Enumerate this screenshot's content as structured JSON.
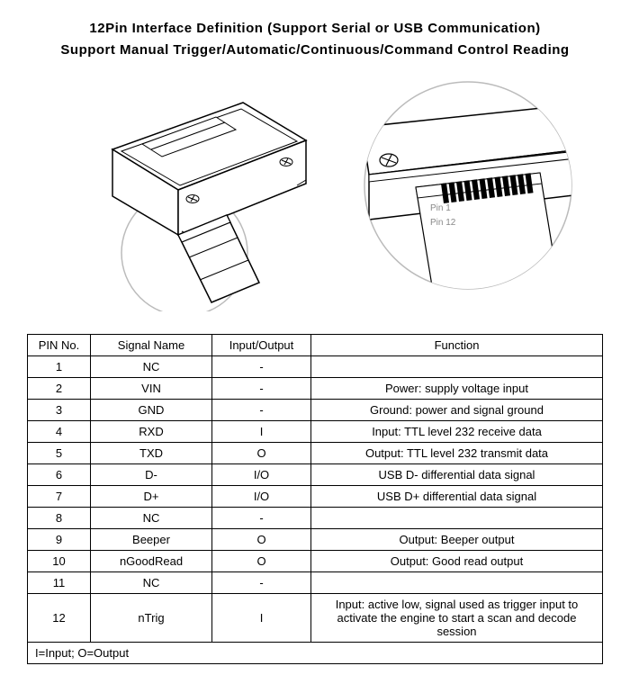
{
  "title": {
    "line1": "12Pin Interface Definition (Support Serial or USB Communication)",
    "line2": "Support Manual Trigger/Automatic/Continuous/Command Control Reading"
  },
  "diagram": {
    "left_module": {
      "stroke": "#000000",
      "stroke_width": 1,
      "fill": "#ffffff",
      "magnifier_circle": {
        "r": 70,
        "stroke": "#bbbbbb",
        "stroke_width": 1.5
      }
    },
    "right_detail": {
      "circle": {
        "r": 115,
        "stroke": "#bbbbbb",
        "stroke_width": 1.5
      },
      "pin_labels": {
        "pin1": "Pin 1",
        "pin12": "Pin 12",
        "color": "#888888",
        "fontsize": 10
      },
      "pin_count": 12
    },
    "background": "#ffffff"
  },
  "table": {
    "headers": {
      "pin": "PIN No.",
      "signal": "Signal Name",
      "io": "Input/Output",
      "func": "Function"
    },
    "rows": [
      {
        "pin": "1",
        "signal": "NC",
        "io": "-",
        "func": ""
      },
      {
        "pin": "2",
        "signal": "VIN",
        "io": "-",
        "func": "Power: supply voltage input"
      },
      {
        "pin": "3",
        "signal": "GND",
        "io": "-",
        "func": "Ground: power and signal ground"
      },
      {
        "pin": "4",
        "signal": "RXD",
        "io": "I",
        "func": "Input: TTL level 232 receive data"
      },
      {
        "pin": "5",
        "signal": "TXD",
        "io": "O",
        "func": "Output: TTL level 232 transmit data"
      },
      {
        "pin": "6",
        "signal": "D-",
        "io": "I/O",
        "func": "USB D- differential data signal"
      },
      {
        "pin": "7",
        "signal": "D+",
        "io": "I/O",
        "func": "USB D+ differential data signal"
      },
      {
        "pin": "8",
        "signal": "NC",
        "io": "-",
        "func": ""
      },
      {
        "pin": "9",
        "signal": "Beeper",
        "io": "O",
        "func": "Output: Beeper output"
      },
      {
        "pin": "10",
        "signal": "nGoodRead",
        "io": "O",
        "func": "Output: Good read output"
      },
      {
        "pin": "11",
        "signal": "NC",
        "io": "-",
        "func": ""
      },
      {
        "pin": "12",
        "signal": "nTrig",
        "io": "I",
        "func": "Input: active low, signal used as trigger input to activate the engine to start a scan and decode session"
      }
    ],
    "footer": "I=Input; O=Output",
    "style": {
      "border_color": "#000000",
      "font_size": 13,
      "col_widths": {
        "pin": 70,
        "signal": 135,
        "io": 110
      }
    }
  },
  "colors": {
    "text": "#000000",
    "background": "#ffffff",
    "grey_line": "#bbbbbb",
    "label_grey": "#888888"
  }
}
